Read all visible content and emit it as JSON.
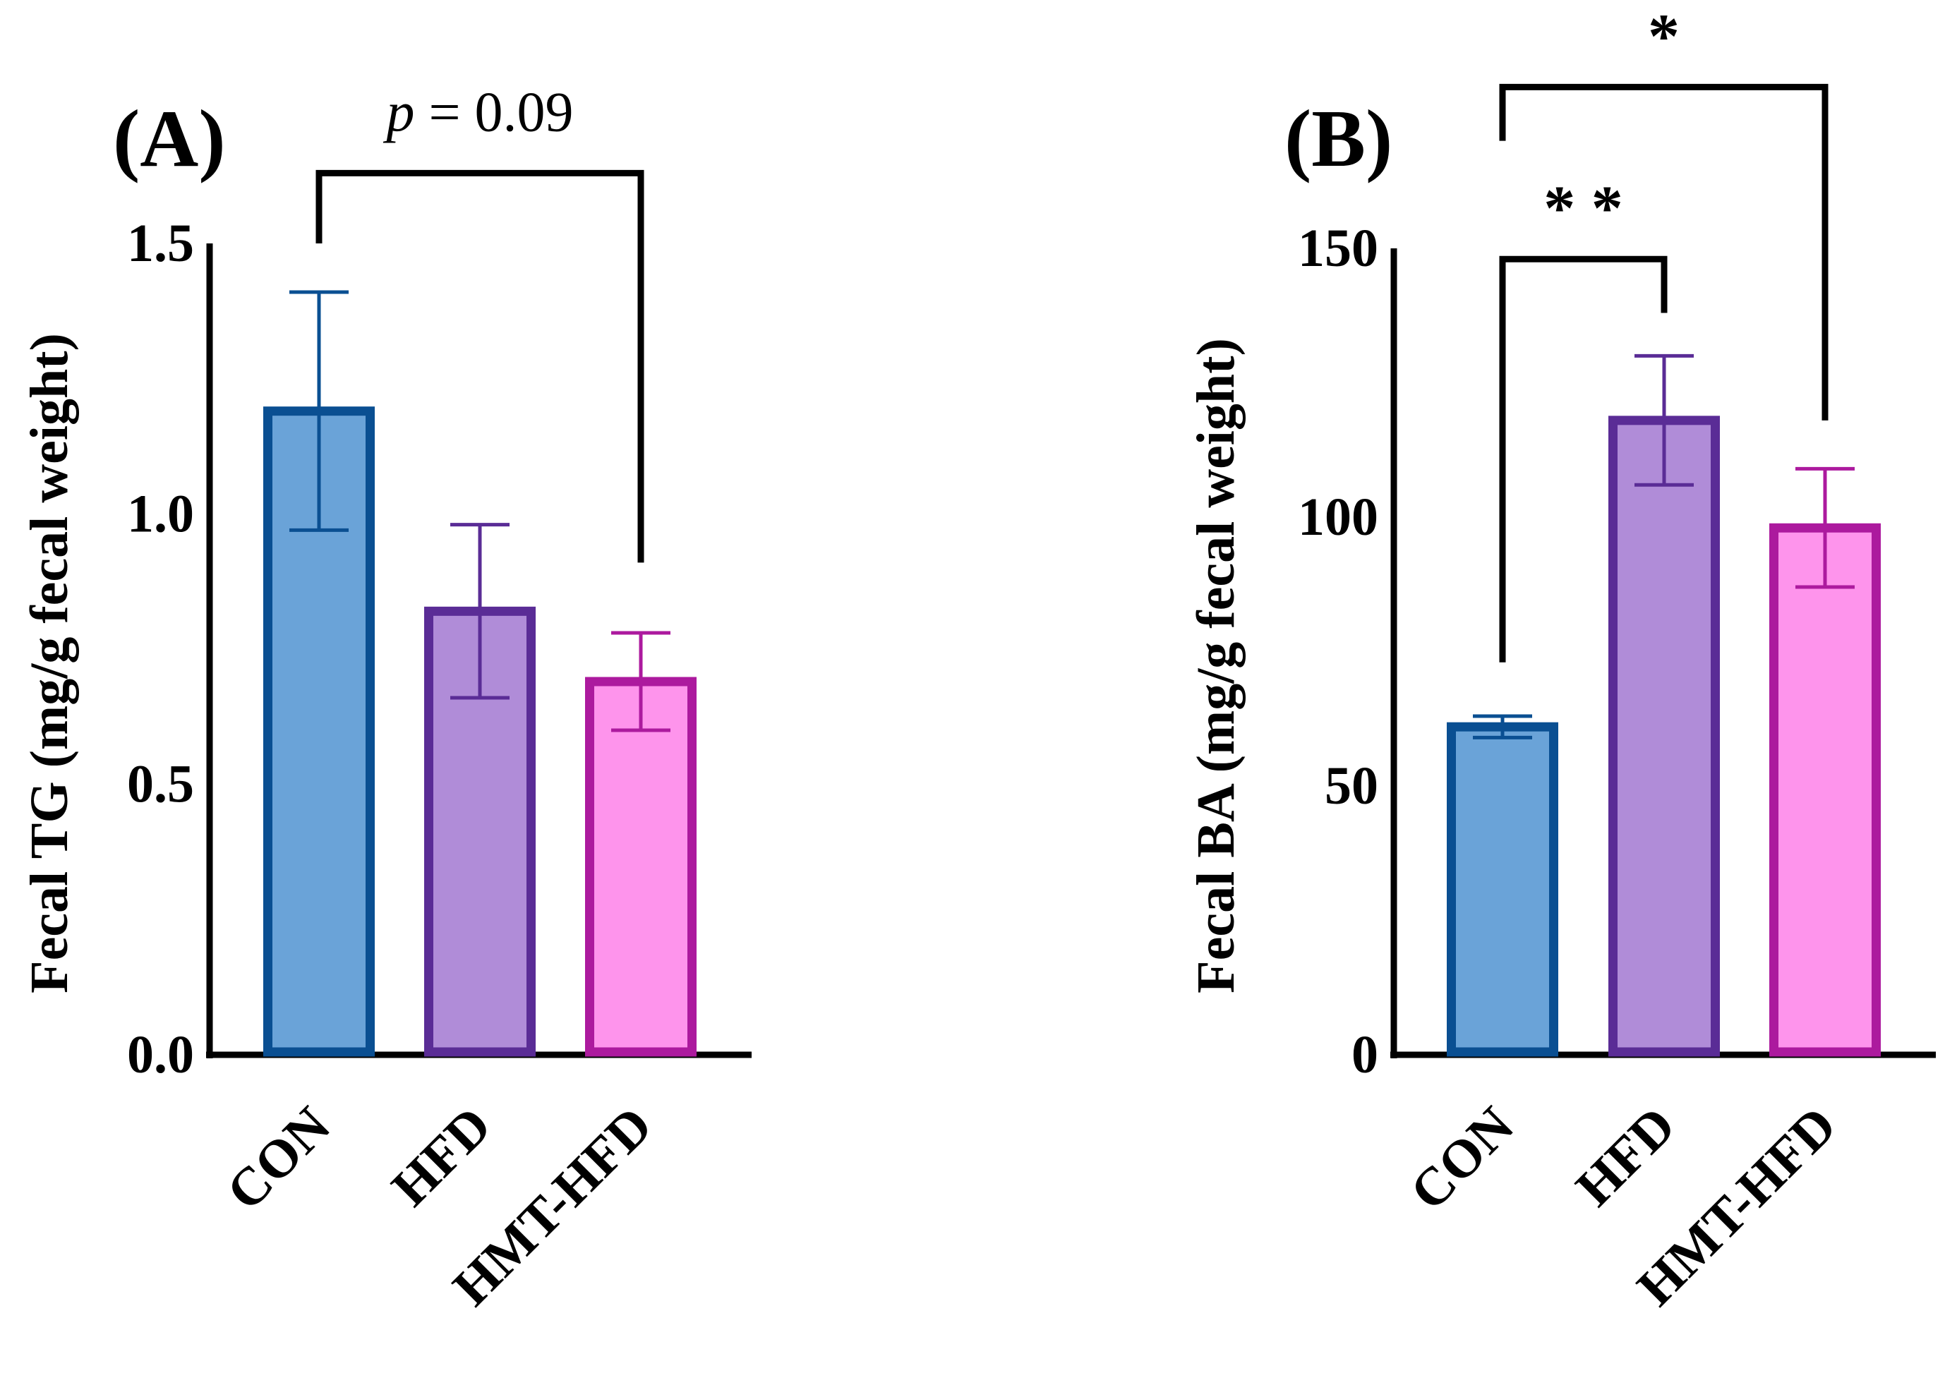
{
  "panels": {
    "a": {
      "label": "(A)"
    },
    "b": {
      "label": "(B)"
    }
  },
  "chart_data": [
    {
      "type": "bar",
      "panel_label": "(A)",
      "categories": [
        "CON",
        "HFD",
        "HMT-HFD"
      ],
      "values": [
        1.19,
        0.82,
        0.69
      ],
      "error": [
        0.22,
        0.16,
        0.09
      ],
      "ylabel": "Fecal TG (mg/g fecal weight)",
      "ylim": [
        0,
        1.5
      ],
      "yticks": [
        0.0,
        0.5,
        1.0,
        1.5
      ],
      "ytick_labels": [
        "0.0",
        "0.5",
        "1.0",
        "1.5"
      ],
      "bar_colors": [
        {
          "fill": "#6aa3d8",
          "stroke": "#0a4f92"
        },
        {
          "fill": "#b08cd8",
          "stroke": "#5a2c96"
        },
        {
          "fill": "#fe94ec",
          "stroke": "#ac1a9e"
        }
      ],
      "brackets": [
        {
          "from": 0,
          "to": 2,
          "label": "p = 0.09",
          "label_italic": "p",
          "label_rest": " = 0.09",
          "left_leg": 1.5,
          "right_leg": 0.91,
          "top": 1.63
        }
      ],
      "grid": false,
      "legend": "none"
    },
    {
      "type": "bar",
      "panel_label": "(B)",
      "categories": [
        "CON",
        "HFD",
        "HMT-HFD"
      ],
      "values": [
        61,
        118,
        98
      ],
      "error": [
        2,
        12,
        11
      ],
      "ylabel": "Fecal BA (mg/g fecal weight)",
      "ylim": [
        0,
        150
      ],
      "yticks": [
        0,
        50,
        100,
        150
      ],
      "ytick_labels": [
        "0",
        "50",
        "100",
        "150"
      ],
      "bar_colors": [
        {
          "fill": "#6aa3d8",
          "stroke": "#0a4f92"
        },
        {
          "fill": "#b08cd8",
          "stroke": "#5a2c96"
        },
        {
          "fill": "#fe94ec",
          "stroke": "#ac1a9e"
        }
      ],
      "brackets": [
        {
          "from": 0,
          "to": 1,
          "label": "* *",
          "left_leg": 73,
          "right_leg": 138,
          "top": 148
        },
        {
          "from": 0,
          "to": 2,
          "label": "*",
          "left_leg": 170,
          "right_leg": 118,
          "top": 180
        }
      ],
      "grid": false,
      "legend": "none"
    }
  ]
}
